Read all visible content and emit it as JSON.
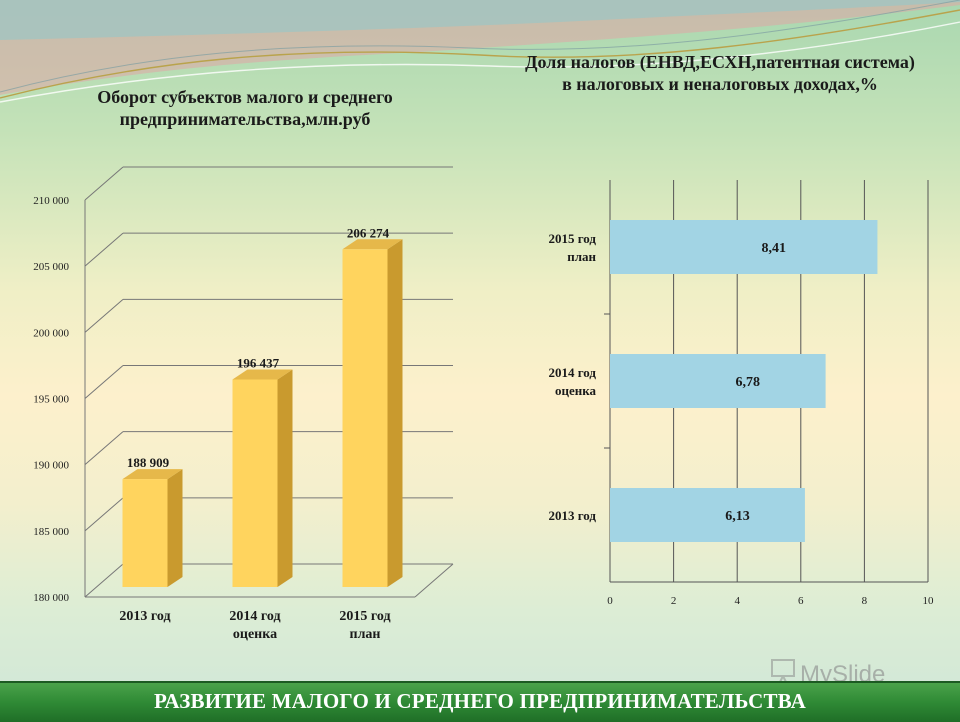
{
  "footer": {
    "text": "РАЗВИТИЕ МАЛОГО И СРЕДНЕГО ПРЕДПРИНИМАТЕЛЬСТВА"
  },
  "watermark": {
    "text": "MySlide",
    "icon": "slide-easel-icon"
  },
  "colors": {
    "bar_left": "#ffd45e",
    "bar_left_side": "#c99a2e",
    "bar_right": "#a2d4e4",
    "footer": "#2f8a35"
  },
  "chart_data": [
    {
      "type": "bar",
      "title": "Оборот субъектов малого и среднего предпринимательства,млн.руб",
      "categories": [
        "2013 год",
        "2014 год оценка",
        "2015 год план"
      ],
      "values": [
        188909,
        196437,
        206274
      ],
      "value_labels": [
        "188 909",
        "196 437",
        "206 274"
      ],
      "ylim": [
        180000,
        210000
      ],
      "yticks": [
        "180 000",
        "185 000",
        "190 000",
        "195 000",
        "200 000",
        "205 000",
        "210 000"
      ],
      "style": "3d-columns",
      "grid": true,
      "xlabel": "",
      "ylabel": ""
    },
    {
      "type": "bar",
      "orientation": "horizontal",
      "title": "Доля налогов (ЕНВД,ЕСХН,патентная система) в налоговых и неналоговых доходах,%",
      "categories": [
        "2013 год",
        "2014 год оценка",
        "2015 год план"
      ],
      "values": [
        6.13,
        6.78,
        8.41
      ],
      "value_labels": [
        "6,13",
        "6,78",
        "8,41"
      ],
      "xlim": [
        0,
        10
      ],
      "xticks": [
        "0",
        "2",
        "4",
        "6",
        "8",
        "10"
      ],
      "grid": true,
      "xlabel": "",
      "ylabel": ""
    }
  ]
}
